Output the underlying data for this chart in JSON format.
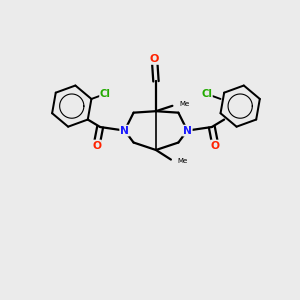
{
  "bg_color": "#ebebeb",
  "atom_colors": {
    "C": "#000000",
    "N": "#1a1aff",
    "O": "#ff2200",
    "Cl": "#22aa00"
  },
  "bond_color": "#000000",
  "bond_width": 1.6,
  "figsize": [
    3.0,
    3.0
  ],
  "dpi": 100,
  "xlim": [
    0,
    10
  ],
  "ylim": [
    0,
    10
  ]
}
